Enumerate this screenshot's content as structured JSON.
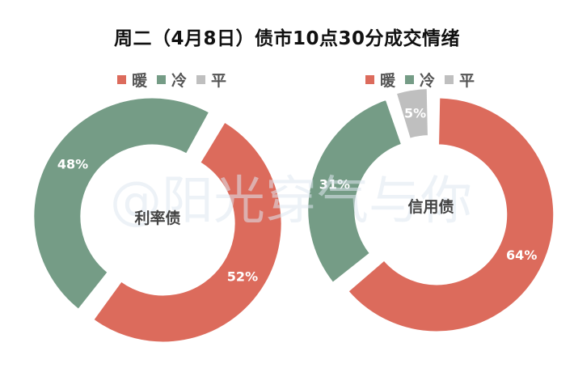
{
  "title": "周二（4月8日）债市10点30分成交情绪",
  "watermark": "@阳光穿气与你",
  "colors": {
    "warm": "#dc6b5c",
    "cold": "#759c86",
    "flat": "#bfbfbf"
  },
  "chart_data": [
    {
      "type": "pie",
      "variant": "donut",
      "title": "利率债",
      "legend": [
        "暖",
        "冷",
        "平"
      ],
      "legend_position": "top",
      "slices": [
        {
          "label": "暖",
          "value": 52,
          "text": "52%"
        },
        {
          "label": "冷",
          "value": 48,
          "text": "48%"
        },
        {
          "label": "平",
          "value": 0,
          "text": "%"
        }
      ]
    },
    {
      "type": "pie",
      "variant": "donut",
      "title": "信用债",
      "legend": [
        "暖",
        "冷",
        "平"
      ],
      "legend_position": "top",
      "slices": [
        {
          "label": "暖",
          "value": 64,
          "text": "64%"
        },
        {
          "label": "冷",
          "value": 31,
          "text": "31%"
        },
        {
          "label": "平",
          "value": 5,
          "text": "5%"
        }
      ]
    }
  ]
}
